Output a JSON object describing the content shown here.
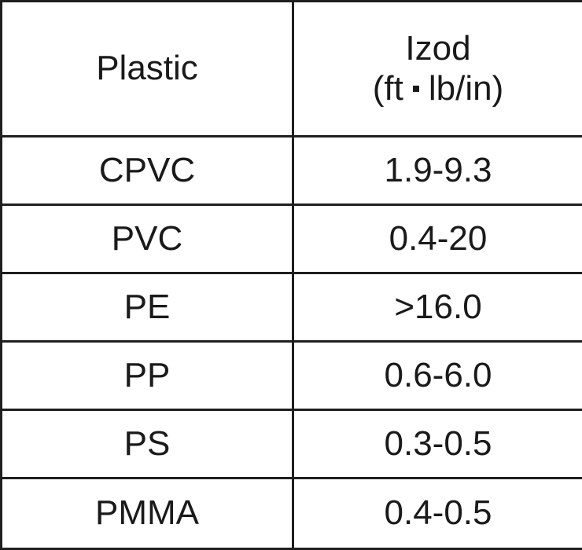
{
  "table": {
    "headers": {
      "plastic": "Plastic",
      "izod_title": "Izod",
      "izod_unit_left": "(ft",
      "izod_unit_right": "lb/in)"
    },
    "rows": [
      {
        "plastic": "CPVC",
        "izod": "1.9-9.3"
      },
      {
        "plastic": "PVC",
        "izod": "0.4-20"
      },
      {
        "plastic": "PE",
        "izod": ">16.0"
      },
      {
        "plastic": "PP",
        "izod": "0.6-6.0"
      },
      {
        "plastic": "PS",
        "izod": "0.3-0.5"
      },
      {
        "plastic": "PMMA",
        "izod": "0.4-0.5"
      }
    ]
  }
}
